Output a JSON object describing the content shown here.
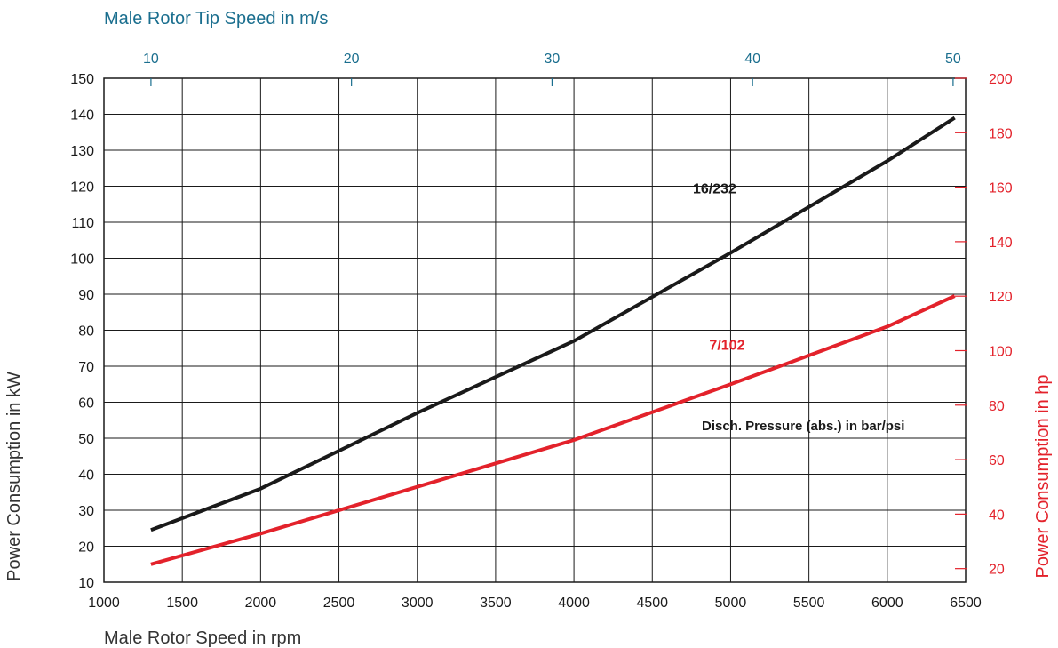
{
  "chart_data": {
    "type": "line",
    "title": "",
    "xlabel": "Male Rotor Speed in rpm",
    "ylabel": "Power Consumption in kW",
    "xlim": [
      1000,
      6500
    ],
    "ylim": [
      10,
      150
    ],
    "x_ticks": [
      "1000",
      "1500",
      "2000",
      "2500",
      "3000",
      "3500",
      "4000",
      "4500",
      "5000",
      "5500",
      "6000",
      "6500"
    ],
    "y_ticks": [
      "10",
      "20",
      "30",
      "40",
      "50",
      "60",
      "70",
      "80",
      "90",
      "100",
      "110",
      "120",
      "130",
      "140",
      "150"
    ],
    "grid": true,
    "x2label": "Male Rotor Tip Speed in m/s",
    "x2_ticks": [
      "10",
      "20",
      "30",
      "40",
      "50"
    ],
    "x2_tick_positions_rpm": [
      1300,
      2580,
      3860,
      5140,
      6420
    ],
    "y2label": "Power Consumption in hp",
    "y2lim": [
      15,
      200
    ],
    "y2_ticks": [
      "20",
      "40",
      "60",
      "80",
      "100",
      "120",
      "140",
      "160",
      "180",
      "200"
    ],
    "legend_title": "Disch. Pressure (abs.) in bar/psi",
    "series": [
      {
        "name": "16/232",
        "color": "#1a1a1a",
        "x": [
          1300,
          2000,
          3000,
          4000,
          5000,
          6000,
          6430
        ],
        "y": [
          24.5,
          36,
          57,
          77,
          101.5,
          127,
          139
        ]
      },
      {
        "name": "7/102",
        "color": "#e3222b",
        "x": [
          1300,
          2000,
          3000,
          4000,
          5000,
          6000,
          6430
        ],
        "y": [
          15,
          23.5,
          36.5,
          49.5,
          65,
          81,
          89.5
        ]
      }
    ],
    "colors": {
      "axis_label": "#333333",
      "top_axis": "#1a6e8e",
      "right_axis": "#e3222b",
      "grid": "#1a1a1a"
    }
  }
}
